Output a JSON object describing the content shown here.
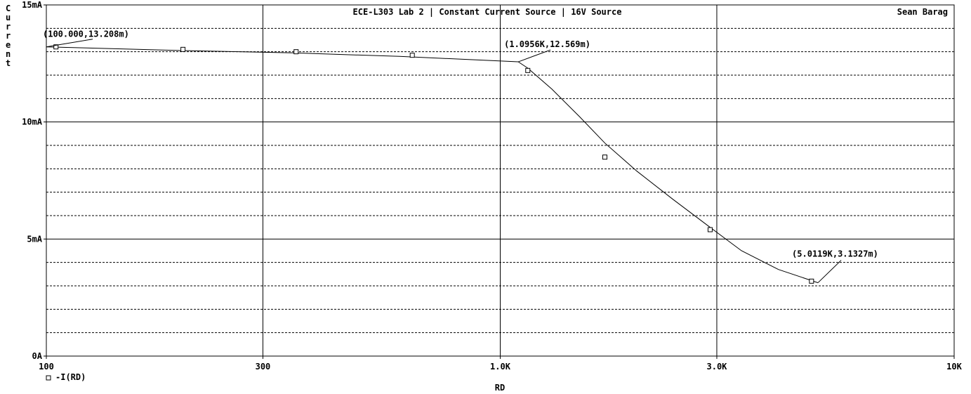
{
  "chart_data": {
    "type": "line",
    "title": "ECE-L303 Lab 2 | Constant Current Source | 16V Source",
    "author": "Sean Barag",
    "xlabel": "RD",
    "ylabel": "Current",
    "xscale": "log",
    "xlim": [
      100,
      10000
    ],
    "ylim": [
      0,
      15
    ],
    "x_ticks": [
      {
        "value": 100,
        "label": "100"
      },
      {
        "value": 300,
        "label": "300"
      },
      {
        "value": 1000,
        "label": "1.0K"
      },
      {
        "value": 3000,
        "label": "3.0K"
      },
      {
        "value": 10000,
        "label": "10K"
      }
    ],
    "y_ticks": [
      {
        "value": 0,
        "label": "0A"
      },
      {
        "value": 5,
        "label": "5mA"
      },
      {
        "value": 10,
        "label": "10mA"
      },
      {
        "value": 15,
        "label": "15mA"
      }
    ],
    "y_minor_grid_step": 1,
    "grid": true,
    "legend": {
      "position": "bottom-left",
      "marker": "square"
    },
    "series": [
      {
        "name": "-I(RD)",
        "line": [
          [
            100,
            13.208
          ],
          [
            200,
            13.05
          ],
          [
            350,
            12.95
          ],
          [
            600,
            12.8
          ],
          [
            1095.6,
            12.569
          ],
          [
            1150,
            12.3
          ],
          [
            1300,
            11.4
          ],
          [
            1500,
            10.2
          ],
          [
            1700,
            9.1
          ],
          [
            2000,
            7.9
          ],
          [
            2400,
            6.7
          ],
          [
            2900,
            5.5
          ],
          [
            3400,
            4.5
          ],
          [
            4100,
            3.7
          ],
          [
            5011.9,
            3.1327
          ]
        ],
        "markers": [
          [
            105,
            13.208
          ],
          [
            200,
            13.1
          ],
          [
            355,
            13.0
          ],
          [
            640,
            12.85
          ],
          [
            1150,
            12.2
          ],
          [
            1700,
            8.5
          ],
          [
            2900,
            5.4
          ],
          [
            4850,
            3.2
          ]
        ]
      }
    ],
    "annotations": [
      {
        "text": "(100.000,13.208m)",
        "x": 100,
        "y": 13.208
      },
      {
        "text": "(1.0956K,12.569m)",
        "x": 1095.6,
        "y": 12.569
      },
      {
        "text": "(5.0119K,3.1327m)",
        "x": 5011.9,
        "y": 3.1327
      }
    ]
  }
}
